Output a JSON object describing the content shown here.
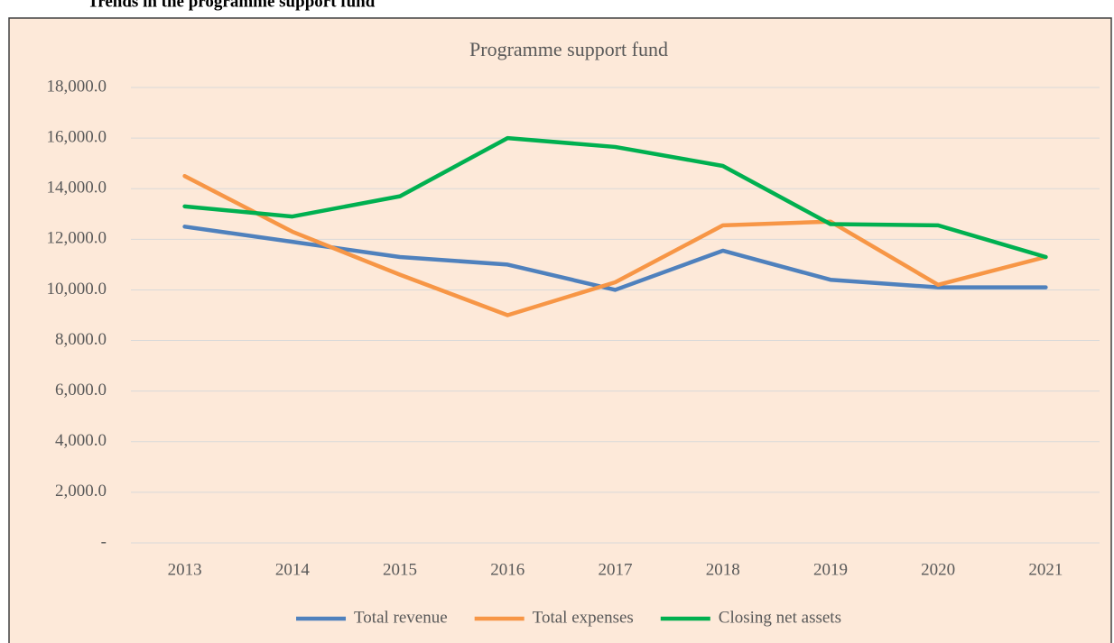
{
  "heading": "Trends in the programme support fund",
  "chart_data": {
    "type": "line",
    "title": "Programme support fund",
    "categories": [
      "2013",
      "2014",
      "2015",
      "2016",
      "2017",
      "2018",
      "2019",
      "2020",
      "2021"
    ],
    "series": [
      {
        "name": "Total revenue",
        "color": "#4f81bd",
        "values": [
          12500,
          11900,
          11300,
          11000,
          10000,
          11550,
          10400,
          10100,
          10100
        ]
      },
      {
        "name": "Total expenses",
        "color": "#f79646",
        "values": [
          14500,
          12300,
          10600,
          9000,
          10300,
          12550,
          12700,
          10200,
          11300
        ]
      },
      {
        "name": "Closing net assets",
        "color": "#00b050",
        "values": [
          13300,
          12900,
          13700,
          16000,
          15650,
          14900,
          12600,
          12550,
          11300
        ]
      }
    ],
    "ylim": [
      0,
      18000
    ],
    "yticks": [
      {
        "value": 0,
        "label": "-"
      },
      {
        "value": 2000,
        "label": "2,000.0"
      },
      {
        "value": 4000,
        "label": "4,000.0"
      },
      {
        "value": 6000,
        "label": "6,000.0"
      },
      {
        "value": 8000,
        "label": "8,000.0"
      },
      {
        "value": 10000,
        "label": "10,000.0"
      },
      {
        "value": 12000,
        "label": "12,000.0"
      },
      {
        "value": 14000,
        "label": "14,000.0"
      },
      {
        "value": 16000,
        "label": "16,000.0"
      },
      {
        "value": 18000,
        "label": "18,000.0"
      }
    ],
    "grid": true,
    "legend": "bottom"
  }
}
